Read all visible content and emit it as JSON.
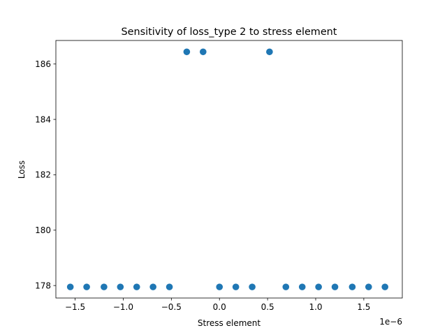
{
  "chart_data": {
    "type": "scatter",
    "title": "Sensitivity of loss_type 2 to stress element",
    "xlabel": "Stress element",
    "ylabel": "Loss",
    "x_offset_label": "1e−6",
    "xlim": [
      -1.7,
      1.9
    ],
    "ylim": [
      177.55,
      186.85
    ],
    "xticks": [
      -1.5,
      -1.0,
      -0.5,
      0.0,
      0.5,
      1.0,
      1.5
    ],
    "xtick_labels": [
      "−1.5",
      "−1.0",
      "−0.5",
      "0.0",
      "0.5",
      "1.0",
      "1.5"
    ],
    "yticks": [
      178,
      180,
      182,
      184,
      186
    ],
    "ytick_labels": [
      "178",
      "180",
      "182",
      "184",
      "186"
    ],
    "marker_color": "#1f77b4",
    "series": [
      {
        "name": "loss",
        "x": [
          -1.55,
          -1.38,
          -1.2,
          -1.03,
          -0.86,
          -0.69,
          -0.52,
          -0.34,
          -0.17,
          0.0,
          0.17,
          0.34,
          0.52,
          0.69,
          0.86,
          1.03,
          1.2,
          1.38,
          1.55,
          1.72
        ],
        "y": [
          177.95,
          177.95,
          177.95,
          177.95,
          177.95,
          177.95,
          177.95,
          186.44,
          186.44,
          177.95,
          177.95,
          177.95,
          186.44,
          177.95,
          177.95,
          177.95,
          177.95,
          177.95,
          177.95,
          177.95
        ]
      }
    ]
  }
}
